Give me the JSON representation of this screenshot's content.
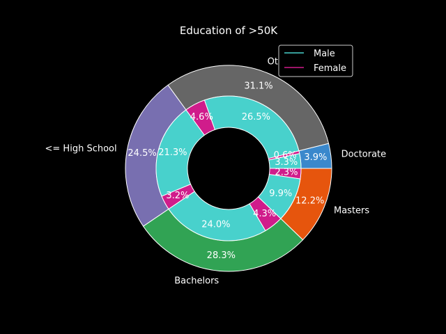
{
  "chart_data": {
    "type": "pie",
    "title": "Education of >50K",
    "outer": {
      "categories": [
        "Doctorate",
        "Other",
        "<= High School",
        "Bachelors",
        "Masters"
      ],
      "values": [
        3.9,
        31.1,
        24.5,
        28.3,
        12.2
      ],
      "labels": [
        "3.9%",
        "31.1%",
        "24.5%",
        "28.3%",
        "12.2%"
      ],
      "colors": [
        "#3a88cc",
        "#666666",
        "#786fb0",
        "#31a354",
        "#e6550d"
      ]
    },
    "inner": {
      "values": [
        3.3,
        0.6,
        26.5,
        4.6,
        21.3,
        3.2,
        24.0,
        4.3,
        9.9,
        2.3
      ],
      "labels": [
        "3.3%",
        "0.6%",
        "26.5%",
        "4.6%",
        "21.3%",
        "3.2%",
        "24.0%",
        "4.3%",
        "9.9%",
        "2.3%"
      ],
      "sex": [
        "Male",
        "Female",
        "Male",
        "Female",
        "Male",
        "Female",
        "Male",
        "Female",
        "Male",
        "Female"
      ]
    },
    "legend": {
      "placement": "top-right",
      "entries": [
        {
          "name": "Male",
          "color": "#48d1cc"
        },
        {
          "name": "Female",
          "color": "#d01c8b"
        }
      ]
    }
  }
}
